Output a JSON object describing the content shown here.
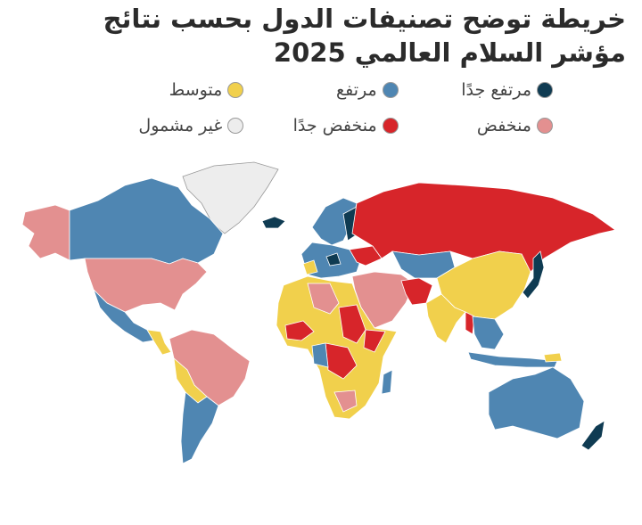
{
  "header": {
    "title": "خريطة توضح تصنيفات الدول بحسب نتائج مؤشر السلام العالمي 2025"
  },
  "legend": [
    {
      "label": "مرتفع جدًا",
      "color": "#0f3b52"
    },
    {
      "label": "مرتفع",
      "color": "#4f86b2"
    },
    {
      "label": "متوسط",
      "color": "#f1d04c"
    },
    {
      "label": "منخفض",
      "color": "#e39090"
    },
    {
      "label": "منخفض جدًا",
      "color": "#d7252a"
    },
    {
      "label": "غير مشمول",
      "color": "#ededed"
    }
  ]
}
